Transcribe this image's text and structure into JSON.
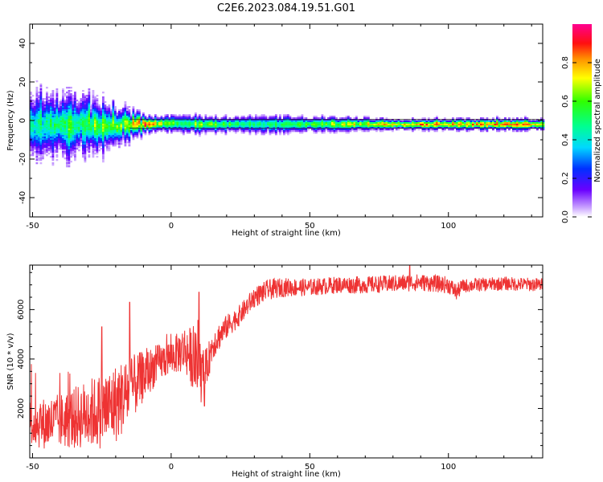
{
  "figure_title": "C2E6.2023.084.19.51.G01",
  "colors": {
    "snr_line": "#ee3333",
    "frame": "#000000",
    "background": "#ffffff"
  },
  "chart_data": [
    {
      "type": "heatmap",
      "title": "",
      "xlabel": "Height of straight line (km)",
      "ylabel": "Frequency (Hz)",
      "xlim": [
        -51,
        134
      ],
      "ylim": [
        -50,
        50
      ],
      "x_ticks": [
        -50,
        0,
        50,
        100
      ],
      "y_ticks": [
        -40,
        -20,
        0,
        20,
        40
      ],
      "x_tick_labels": [
        "-50",
        "0",
        "50",
        "100"
      ],
      "y_tick_labels": [
        "-40",
        "-20",
        "0",
        "20",
        "40"
      ],
      "colorbar": {
        "label": "Normalized spectral amplitude",
        "range": [
          0,
          1
        ],
        "ticks": [
          0,
          0.2,
          0.4,
          0.6,
          0.8
        ],
        "tick_labels": [
          "0.0",
          "0.2",
          "0.4",
          "0.6",
          "0.8"
        ],
        "colormap": "rainbow (white-violet-blue-cyan-green-yellow-orange-red-magenta)"
      },
      "ridge": {
        "description": "Dominant spectral peak near -2 Hz, broad and noisy below ~-15 km, narrow and strong above",
        "x": [
          -50,
          -40,
          -30,
          -20,
          -15,
          -10,
          0,
          10,
          20,
          30,
          40,
          50,
          60,
          70,
          80,
          90,
          100,
          110,
          120,
          134
        ],
        "center_hz": [
          -2,
          -2.5,
          -2,
          -2.5,
          -2,
          -2,
          -1.5,
          -2,
          -2,
          -2,
          -2,
          -2,
          -2,
          -2,
          -2,
          -2,
          -2,
          -2,
          -2,
          -2
        ],
        "spread_hz": [
          12,
          11,
          10,
          7,
          5,
          3,
          3,
          3,
          3,
          3,
          3,
          2.5,
          2.5,
          2.5,
          2,
          2,
          2,
          2,
          2,
          2
        ],
        "peak_amplitude": [
          0.5,
          0.55,
          0.6,
          0.65,
          0.7,
          0.9,
          0.6,
          0.65,
          0.6,
          0.5,
          0.55,
          0.6,
          0.7,
          0.75,
          0.8,
          0.85,
          0.85,
          0.85,
          0.85,
          0.85
        ]
      }
    },
    {
      "type": "line",
      "title": "",
      "xlabel": "Height of straight line (km)",
      "ylabel": "SNR (10 * v/v)",
      "xlim": [
        -51,
        134
      ],
      "ylim": [
        0,
        7800
      ],
      "x_ticks": [
        -50,
        0,
        50,
        100
      ],
      "y_ticks": [
        2000,
        4000,
        6000
      ],
      "x_tick_labels": [
        "-50",
        "0",
        "50",
        "100"
      ],
      "y_tick_labels": [
        "2000",
        "4000",
        "6000"
      ],
      "series": [
        {
          "envelope": {
            "x": [
              -51,
              -45,
              -40,
              -35,
              -30,
              -25,
              -20,
              -15,
              -10,
              -5,
              0,
              5,
              8,
              10,
              12,
              15,
              20,
              25,
              30,
              35,
              40,
              50,
              60,
              70,
              80,
              90,
              95,
              100,
              103,
              105,
              110,
              120,
              134
            ],
            "mean": [
              1400,
              1400,
              1500,
              1600,
              1800,
              1900,
              2200,
              2700,
              3300,
              3800,
              4100,
              4400,
              4000,
              3500,
              3300,
              4600,
              5300,
              5800,
              6500,
              6800,
              6900,
              6900,
              7000,
              7000,
              7050,
              7100,
              7050,
              7000,
              6700,
              6950,
              7000,
              7050,
              7000
            ],
            "noise": [
              700,
              750,
              800,
              900,
              1000,
              1100,
              1150,
              1000,
              750,
              550,
              500,
              700,
              900,
              1000,
              600,
              450,
              350,
              300,
              300,
              300,
              280,
              250,
              250,
              250,
              250,
              250,
              250,
              250,
              250,
              200,
              200,
              200,
              200
            ]
          },
          "notable_spikes": [
            {
              "x": 86,
              "y": 7800
            },
            {
              "x": -15,
              "y": 6300
            },
            {
              "x": -25,
              "y": 5300
            },
            {
              "x": 10,
              "y": 6700
            },
            {
              "x": 12,
              "y": 2100
            }
          ],
          "samples": 1600
        }
      ]
    }
  ]
}
